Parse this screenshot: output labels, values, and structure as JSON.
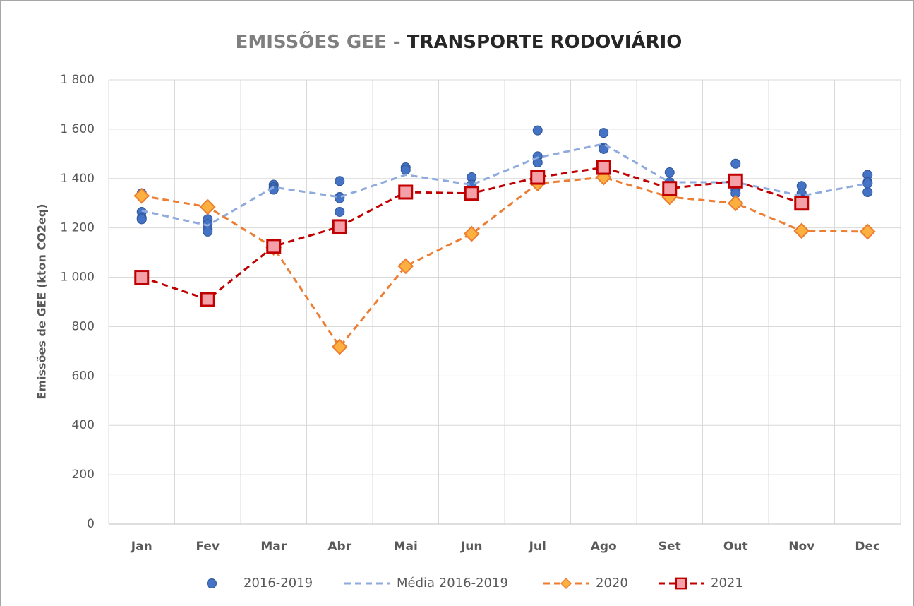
{
  "chart_data": {
    "type": "line",
    "title": [
      "EMISSÕES GEE -",
      "TRANSPORTE RODOVIÁRIO"
    ],
    "y_label": "Emissões de GEE (kton CO2eq)",
    "categories": [
      "Jan",
      "Fev",
      "Mar",
      "Abr",
      "Mai",
      "Jun",
      "Jul",
      "Ago",
      "Set",
      "Out",
      "Nov",
      "Dec"
    ],
    "ylim": [
      0,
      1800
    ],
    "yticks": [
      0,
      200,
      400,
      600,
      800,
      {
        "value": 1000,
        "label": "1 000"
      },
      {
        "value": 1200,
        "label": "1 200"
      },
      {
        "value": 1400,
        "label": "1 400"
      },
      {
        "value": 1600,
        "label": "1 600"
      },
      {
        "value": 1800,
        "label": "1 800"
      }
    ],
    "grid": true,
    "legend": "bottom",
    "series": [
      {
        "name": "2016-2019",
        "color": "#4472c4",
        "marker": "circle",
        "line": false,
        "values": [
          [
            1340,
            1265,
            1240,
            1235
          ],
          [
            1235,
            1215,
            1195,
            1185
          ],
          [
            1375,
            1365,
            1360,
            1355
          ],
          [
            1390,
            1325,
            1320,
            1265
          ],
          [
            1445,
            1435,
            1345,
            1350
          ],
          [
            1405,
            1375,
            1350,
            1340
          ],
          [
            1595,
            1490,
            1465,
            1410
          ],
          [
            1585,
            1525,
            1520,
            1520
          ],
          [
            1425,
            1385,
            1365,
            1360
          ],
          [
            1460,
            1395,
            1355,
            1340
          ],
          [
            1370,
            1340,
            1315,
            1305
          ],
          [
            1415,
            1385,
            1345,
            1380
          ]
        ]
      },
      {
        "name": "Média 2016-2019",
        "color": "#8faadc",
        "marker": "none",
        "line": true,
        "values": [
          1270,
          1210,
          1365,
          1325,
          1415,
          1375,
          1485,
          1540,
          1385,
          1385,
          1330,
          1380
        ]
      },
      {
        "name": "2020",
        "color": "#ed7d31",
        "marker": "diamond",
        "marker_fill": "#fbb040",
        "line": true,
        "values": [
          1330,
          1285,
          1120,
          718,
          1045,
          1176,
          1380,
          1405,
          1325,
          1300,
          1188,
          1185
        ]
      },
      {
        "name": "2021",
        "color": "#c00000",
        "marker": "square",
        "marker_fill": "#f4a0a8",
        "line": true,
        "values": [
          1000,
          910,
          1125,
          1205,
          1345,
          1340,
          1405,
          1445,
          1360,
          1390,
          1300,
          null
        ]
      }
    ]
  }
}
